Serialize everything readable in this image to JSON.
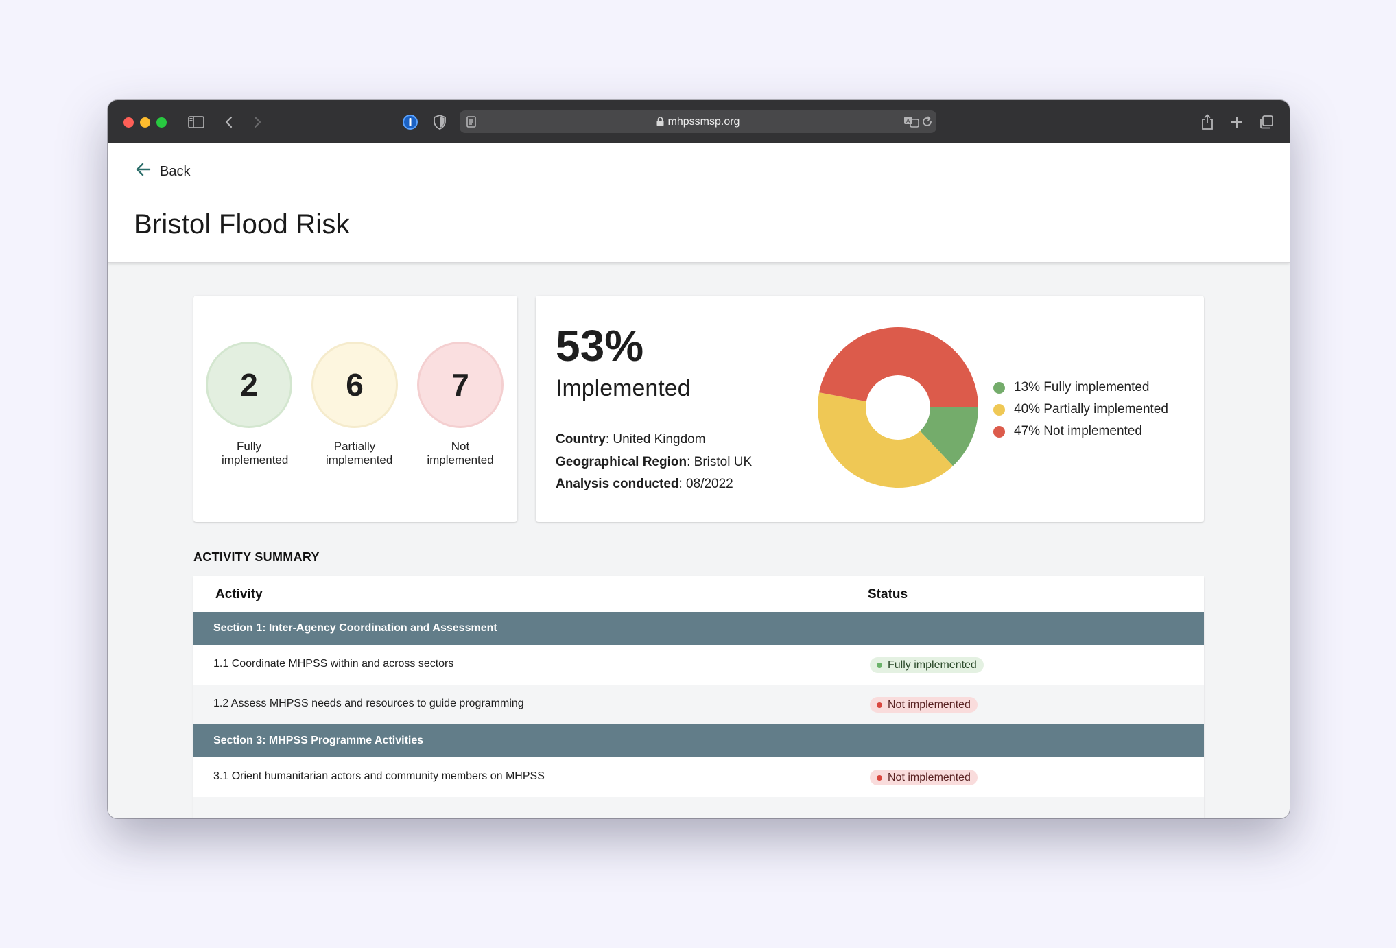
{
  "browser": {
    "url": "mhpssmsp.org"
  },
  "header": {
    "back_label": "Back",
    "title": "Bristol Flood Risk"
  },
  "counts": [
    {
      "value": "2",
      "label": "Fully implemented",
      "color": "#e3efe0",
      "ring": "#d3e6cf"
    },
    {
      "value": "6",
      "label": "Partially implemented",
      "color": "#fdf6df",
      "ring": "#f5ebcc"
    },
    {
      "value": "7",
      "label": "Not implemented",
      "color": "#fadfe0",
      "ring": "#f4cfd0"
    }
  ],
  "summary": {
    "percent": "53%",
    "percent_label": "Implemented",
    "country_label": "Country",
    "country_value": ": United Kingdom",
    "region_label": "Geographical Region",
    "region_value": ": Bristol UK",
    "analysis_label": "Analysis conducted",
    "analysis_value": ": 08/2022"
  },
  "chart_data": {
    "type": "pie",
    "categories": [
      "Fully implemented",
      "Partially implemented",
      "Not implemented"
    ],
    "values": [
      13,
      40,
      47
    ],
    "colors": [
      "#74ac6b",
      "#efc855",
      "#dc5b4b"
    ],
    "legend": [
      "13% Fully implemented",
      "40% Partially implemented",
      "47% Not implemented"
    ],
    "title": ""
  },
  "activity": {
    "section_title": "ACTIVITY SUMMARY",
    "col_activity": "Activity",
    "col_status": "Status",
    "sections": [
      {
        "title": "Section 1: Inter-Agency Coordination and Assessment"
      },
      {
        "title": "Section 3: MHPSS Programme Activities"
      }
    ],
    "rows": [
      {
        "activity": "1.1 Coordinate MHPSS within and across sectors",
        "status": "Fully implemented"
      },
      {
        "activity": "1.2 Assess MHPSS needs and resources to guide programming",
        "status": "Not implemented"
      },
      {
        "activity": "3.1 Orient humanitarian actors and community members on MHPSS",
        "status": "Not implemented"
      }
    ]
  }
}
